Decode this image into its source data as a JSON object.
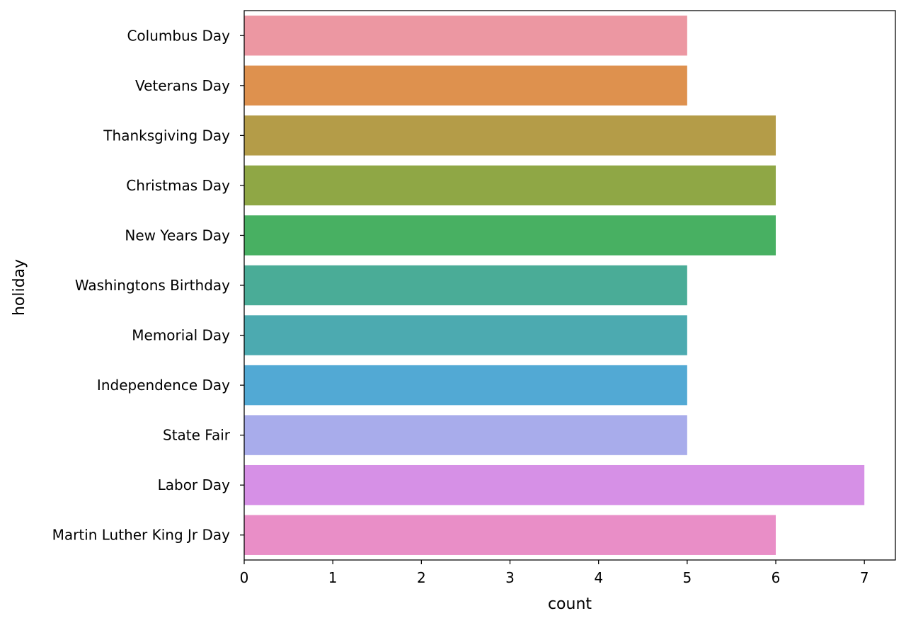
{
  "chart_data": {
    "type": "bar",
    "orientation": "horizontal",
    "title": "",
    "xlabel": "count",
    "ylabel": "holiday",
    "xlim": [
      0,
      7.35
    ],
    "xticks": [
      0,
      1,
      2,
      3,
      4,
      5,
      6,
      7
    ],
    "grid": false,
    "categories": [
      "Columbus Day",
      "Veterans Day",
      "Thanksgiving Day",
      "Christmas Day",
      "New Years Day",
      "Washingtons Birthday",
      "Memorial Day",
      "Independence Day",
      "State Fair",
      "Labor Day",
      "Martin Luther King Jr Day"
    ],
    "values": [
      5,
      5,
      6,
      6,
      6,
      5,
      5,
      5,
      5,
      7,
      6
    ],
    "colors": [
      "#ec97a2",
      "#de914e",
      "#b49c48",
      "#8fa745",
      "#48b062",
      "#4aac97",
      "#4caab0",
      "#52a9d4",
      "#a8aceb",
      "#d690e6",
      "#e98ec7"
    ]
  }
}
